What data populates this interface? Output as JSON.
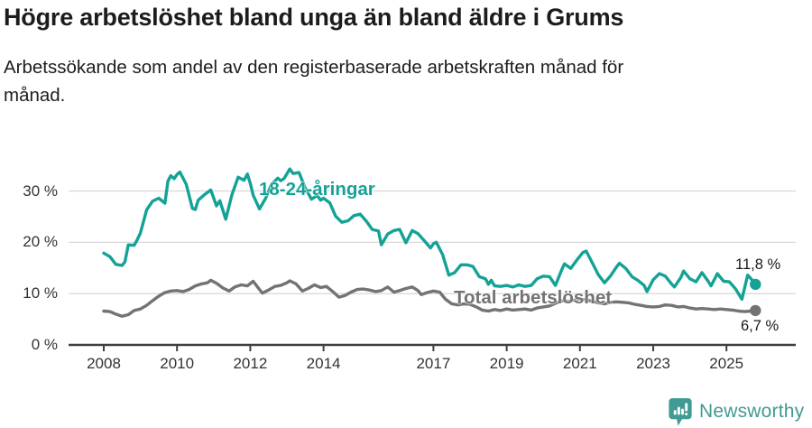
{
  "header": {
    "title": "Högre arbetslöshet bland unga än bland äldre i Grums",
    "subtitle": "Arbetssökande som andel av den registerbaserade arbetskraften månad för månad.",
    "subtitle_lines": [
      "Arbetssökande som andel av den registerbaserade arbetskraften månad för",
      "månad."
    ]
  },
  "footer": {
    "brand": "Newsworthy",
    "brand_color": "#419a94",
    "logo_icon": "bar-chart-speech-bubble"
  },
  "chart_data": {
    "type": "line",
    "title": "Högre arbetslöshet bland unga än bland äldre i Grums",
    "subtitle": "Arbetssökande som andel av den registerbaserade arbetskraften månad för månad.",
    "unit": "%",
    "grid": "horizontal",
    "x_axis": {
      "ticks": [
        2008,
        2010,
        2012,
        2014,
        2017,
        2019,
        2021,
        2023,
        2025
      ],
      "range": [
        2008,
        2026.2
      ]
    },
    "y_axis": {
      "ticks": [
        0,
        10,
        20,
        30
      ],
      "tick_labels": [
        "0 %",
        "10 %",
        "20 %",
        "30 %"
      ],
      "range": [
        0,
        36
      ]
    },
    "series": [
      {
        "name": "18-24-åringar",
        "color": "#15a296",
        "end_label": "11,8 %",
        "end_value": 11.8,
        "points": [
          [
            2008.0,
            17.9
          ],
          [
            2008.17,
            17.2
          ],
          [
            2008.33,
            15.7
          ],
          [
            2008.5,
            15.5
          ],
          [
            2008.58,
            16.2
          ],
          [
            2008.67,
            19.5
          ],
          [
            2008.83,
            19.4
          ],
          [
            2008.92,
            20.6
          ],
          [
            2009.0,
            21.8
          ],
          [
            2009.17,
            26.3
          ],
          [
            2009.33,
            28.0
          ],
          [
            2009.5,
            28.6
          ],
          [
            2009.67,
            27.6
          ],
          [
            2009.75,
            31.9
          ],
          [
            2009.83,
            33.0
          ],
          [
            2009.92,
            32.4
          ],
          [
            2010.0,
            33.2
          ],
          [
            2010.08,
            33.7
          ],
          [
            2010.25,
            31.3
          ],
          [
            2010.42,
            26.6
          ],
          [
            2010.5,
            26.4
          ],
          [
            2010.58,
            28.2
          ],
          [
            2010.75,
            29.3
          ],
          [
            2010.92,
            30.2
          ],
          [
            2011.08,
            27.1
          ],
          [
            2011.17,
            28.1
          ],
          [
            2011.33,
            24.5
          ],
          [
            2011.5,
            29.3
          ],
          [
            2011.67,
            32.7
          ],
          [
            2011.83,
            32.1
          ],
          [
            2011.92,
            33.3
          ],
          [
            2012.0,
            31.5
          ],
          [
            2012.08,
            29.2
          ],
          [
            2012.25,
            26.5
          ],
          [
            2012.42,
            28.6
          ],
          [
            2012.58,
            31.3
          ],
          [
            2012.75,
            32.5
          ],
          [
            2012.83,
            32.0
          ],
          [
            2012.92,
            32.4
          ],
          [
            2013.08,
            34.3
          ],
          [
            2013.17,
            33.4
          ],
          [
            2013.33,
            33.6
          ],
          [
            2013.5,
            30.6
          ],
          [
            2013.67,
            28.4
          ],
          [
            2013.83,
            29.1
          ],
          [
            2013.92,
            28.2
          ],
          [
            2014.0,
            28.6
          ],
          [
            2014.17,
            27.7
          ],
          [
            2014.33,
            25.1
          ],
          [
            2014.5,
            23.9
          ],
          [
            2014.67,
            24.2
          ],
          [
            2014.83,
            25.2
          ],
          [
            2015.0,
            25.5
          ],
          [
            2015.17,
            24.1
          ],
          [
            2015.33,
            22.5
          ],
          [
            2015.5,
            22.2
          ],
          [
            2015.58,
            19.5
          ],
          [
            2015.75,
            21.6
          ],
          [
            2015.92,
            22.3
          ],
          [
            2016.08,
            22.5
          ],
          [
            2016.25,
            19.9
          ],
          [
            2016.42,
            22.3
          ],
          [
            2016.58,
            21.7
          ],
          [
            2016.75,
            20.3
          ],
          [
            2016.92,
            18.9
          ],
          [
            2017.0,
            19.7
          ],
          [
            2017.08,
            20.0
          ],
          [
            2017.25,
            17.6
          ],
          [
            2017.42,
            13.6
          ],
          [
            2017.58,
            14.1
          ],
          [
            2017.75,
            15.6
          ],
          [
            2017.92,
            15.6
          ],
          [
            2018.08,
            15.3
          ],
          [
            2018.25,
            13.3
          ],
          [
            2018.42,
            12.9
          ],
          [
            2018.5,
            11.8
          ],
          [
            2018.58,
            12.6
          ],
          [
            2018.67,
            11.5
          ],
          [
            2018.83,
            11.4
          ],
          [
            2019.0,
            11.6
          ],
          [
            2019.17,
            11.3
          ],
          [
            2019.33,
            11.7
          ],
          [
            2019.5,
            11.4
          ],
          [
            2019.67,
            11.6
          ],
          [
            2019.83,
            12.9
          ],
          [
            2020.0,
            13.4
          ],
          [
            2020.17,
            13.3
          ],
          [
            2020.33,
            11.6
          ],
          [
            2020.5,
            14.6
          ],
          [
            2020.58,
            15.8
          ],
          [
            2020.75,
            14.9
          ],
          [
            2020.92,
            16.6
          ],
          [
            2021.08,
            18.0
          ],
          [
            2021.17,
            18.3
          ],
          [
            2021.33,
            16.1
          ],
          [
            2021.5,
            13.7
          ],
          [
            2021.67,
            12.1
          ],
          [
            2021.83,
            13.4
          ],
          [
            2022.0,
            15.2
          ],
          [
            2022.08,
            15.9
          ],
          [
            2022.25,
            14.9
          ],
          [
            2022.42,
            13.3
          ],
          [
            2022.58,
            12.6
          ],
          [
            2022.75,
            11.6
          ],
          [
            2022.83,
            10.4
          ],
          [
            2023.0,
            12.7
          ],
          [
            2023.17,
            13.9
          ],
          [
            2023.33,
            13.4
          ],
          [
            2023.5,
            11.9
          ],
          [
            2023.58,
            11.3
          ],
          [
            2023.75,
            13.1
          ],
          [
            2023.83,
            14.4
          ],
          [
            2024.0,
            12.9
          ],
          [
            2024.17,
            12.3
          ],
          [
            2024.33,
            14.1
          ],
          [
            2024.5,
            12.4
          ],
          [
            2024.58,
            11.5
          ],
          [
            2024.75,
            13.9
          ],
          [
            2024.92,
            12.4
          ],
          [
            2025.08,
            12.3
          ],
          [
            2025.25,
            10.9
          ],
          [
            2025.42,
            8.9
          ],
          [
            2025.58,
            13.6
          ],
          [
            2025.67,
            12.9
          ],
          [
            2025.79,
            11.8
          ]
        ]
      },
      {
        "name": "Total arbetslöshet",
        "color": "#737373",
        "end_label": "6,7 %",
        "end_value": 6.7,
        "points": [
          [
            2008.0,
            6.6
          ],
          [
            2008.17,
            6.5
          ],
          [
            2008.33,
            6.0
          ],
          [
            2008.5,
            5.6
          ],
          [
            2008.67,
            5.9
          ],
          [
            2008.83,
            6.7
          ],
          [
            2009.0,
            7.0
          ],
          [
            2009.17,
            7.7
          ],
          [
            2009.33,
            8.6
          ],
          [
            2009.5,
            9.5
          ],
          [
            2009.67,
            10.2
          ],
          [
            2009.83,
            10.5
          ],
          [
            2010.0,
            10.6
          ],
          [
            2010.17,
            10.4
          ],
          [
            2010.33,
            10.8
          ],
          [
            2010.5,
            11.5
          ],
          [
            2010.67,
            11.9
          ],
          [
            2010.83,
            12.1
          ],
          [
            2010.92,
            12.6
          ],
          [
            2011.08,
            12.0
          ],
          [
            2011.25,
            11.1
          ],
          [
            2011.42,
            10.5
          ],
          [
            2011.58,
            11.3
          ],
          [
            2011.75,
            11.7
          ],
          [
            2011.92,
            11.5
          ],
          [
            2012.08,
            12.4
          ],
          [
            2012.25,
            10.8
          ],
          [
            2012.33,
            10.1
          ],
          [
            2012.5,
            10.7
          ],
          [
            2012.67,
            11.4
          ],
          [
            2012.83,
            11.6
          ],
          [
            2013.0,
            12.1
          ],
          [
            2013.08,
            12.5
          ],
          [
            2013.25,
            11.9
          ],
          [
            2013.42,
            10.5
          ],
          [
            2013.58,
            11.0
          ],
          [
            2013.75,
            11.7
          ],
          [
            2013.92,
            11.2
          ],
          [
            2014.08,
            11.4
          ],
          [
            2014.25,
            10.4
          ],
          [
            2014.42,
            9.3
          ],
          [
            2014.58,
            9.6
          ],
          [
            2014.75,
            10.3
          ],
          [
            2014.92,
            10.8
          ],
          [
            2015.08,
            10.9
          ],
          [
            2015.25,
            10.7
          ],
          [
            2015.42,
            10.4
          ],
          [
            2015.58,
            10.6
          ],
          [
            2015.75,
            11.3
          ],
          [
            2015.92,
            10.3
          ],
          [
            2016.08,
            10.6
          ],
          [
            2016.25,
            11.0
          ],
          [
            2016.42,
            11.3
          ],
          [
            2016.58,
            10.6
          ],
          [
            2016.67,
            9.8
          ],
          [
            2016.83,
            10.2
          ],
          [
            2017.0,
            10.5
          ],
          [
            2017.17,
            10.3
          ],
          [
            2017.33,
            8.9
          ],
          [
            2017.5,
            8.0
          ],
          [
            2017.67,
            7.8
          ],
          [
            2017.83,
            8.0
          ],
          [
            2018.0,
            7.9
          ],
          [
            2018.17,
            7.4
          ],
          [
            2018.33,
            6.8
          ],
          [
            2018.5,
            6.6
          ],
          [
            2018.67,
            6.9
          ],
          [
            2018.83,
            6.7
          ],
          [
            2019.0,
            7.0
          ],
          [
            2019.17,
            6.8
          ],
          [
            2019.33,
            6.9
          ],
          [
            2019.5,
            7.0
          ],
          [
            2019.67,
            6.8
          ],
          [
            2019.83,
            7.2
          ],
          [
            2020.0,
            7.4
          ],
          [
            2020.17,
            7.6
          ],
          [
            2020.33,
            8.1
          ],
          [
            2020.5,
            8.6
          ],
          [
            2020.67,
            8.5
          ],
          [
            2020.83,
            8.7
          ],
          [
            2021.0,
            8.9
          ],
          [
            2021.17,
            8.8
          ],
          [
            2021.33,
            8.5
          ],
          [
            2021.5,
            8.2
          ],
          [
            2021.67,
            8.0
          ],
          [
            2021.83,
            8.3
          ],
          [
            2022.0,
            8.4
          ],
          [
            2022.17,
            8.3
          ],
          [
            2022.33,
            8.2
          ],
          [
            2022.5,
            7.9
          ],
          [
            2022.67,
            7.7
          ],
          [
            2022.83,
            7.5
          ],
          [
            2023.0,
            7.4
          ],
          [
            2023.17,
            7.5
          ],
          [
            2023.33,
            7.8
          ],
          [
            2023.5,
            7.7
          ],
          [
            2023.67,
            7.4
          ],
          [
            2023.83,
            7.5
          ],
          [
            2024.0,
            7.2
          ],
          [
            2024.17,
            7.0
          ],
          [
            2024.33,
            7.1
          ],
          [
            2024.5,
            7.0
          ],
          [
            2024.67,
            6.9
          ],
          [
            2024.83,
            7.0
          ],
          [
            2025.0,
            6.9
          ],
          [
            2025.17,
            6.8
          ],
          [
            2025.33,
            6.6
          ],
          [
            2025.5,
            6.5
          ],
          [
            2025.67,
            6.6
          ],
          [
            2025.79,
            6.7
          ]
        ]
      }
    ]
  }
}
